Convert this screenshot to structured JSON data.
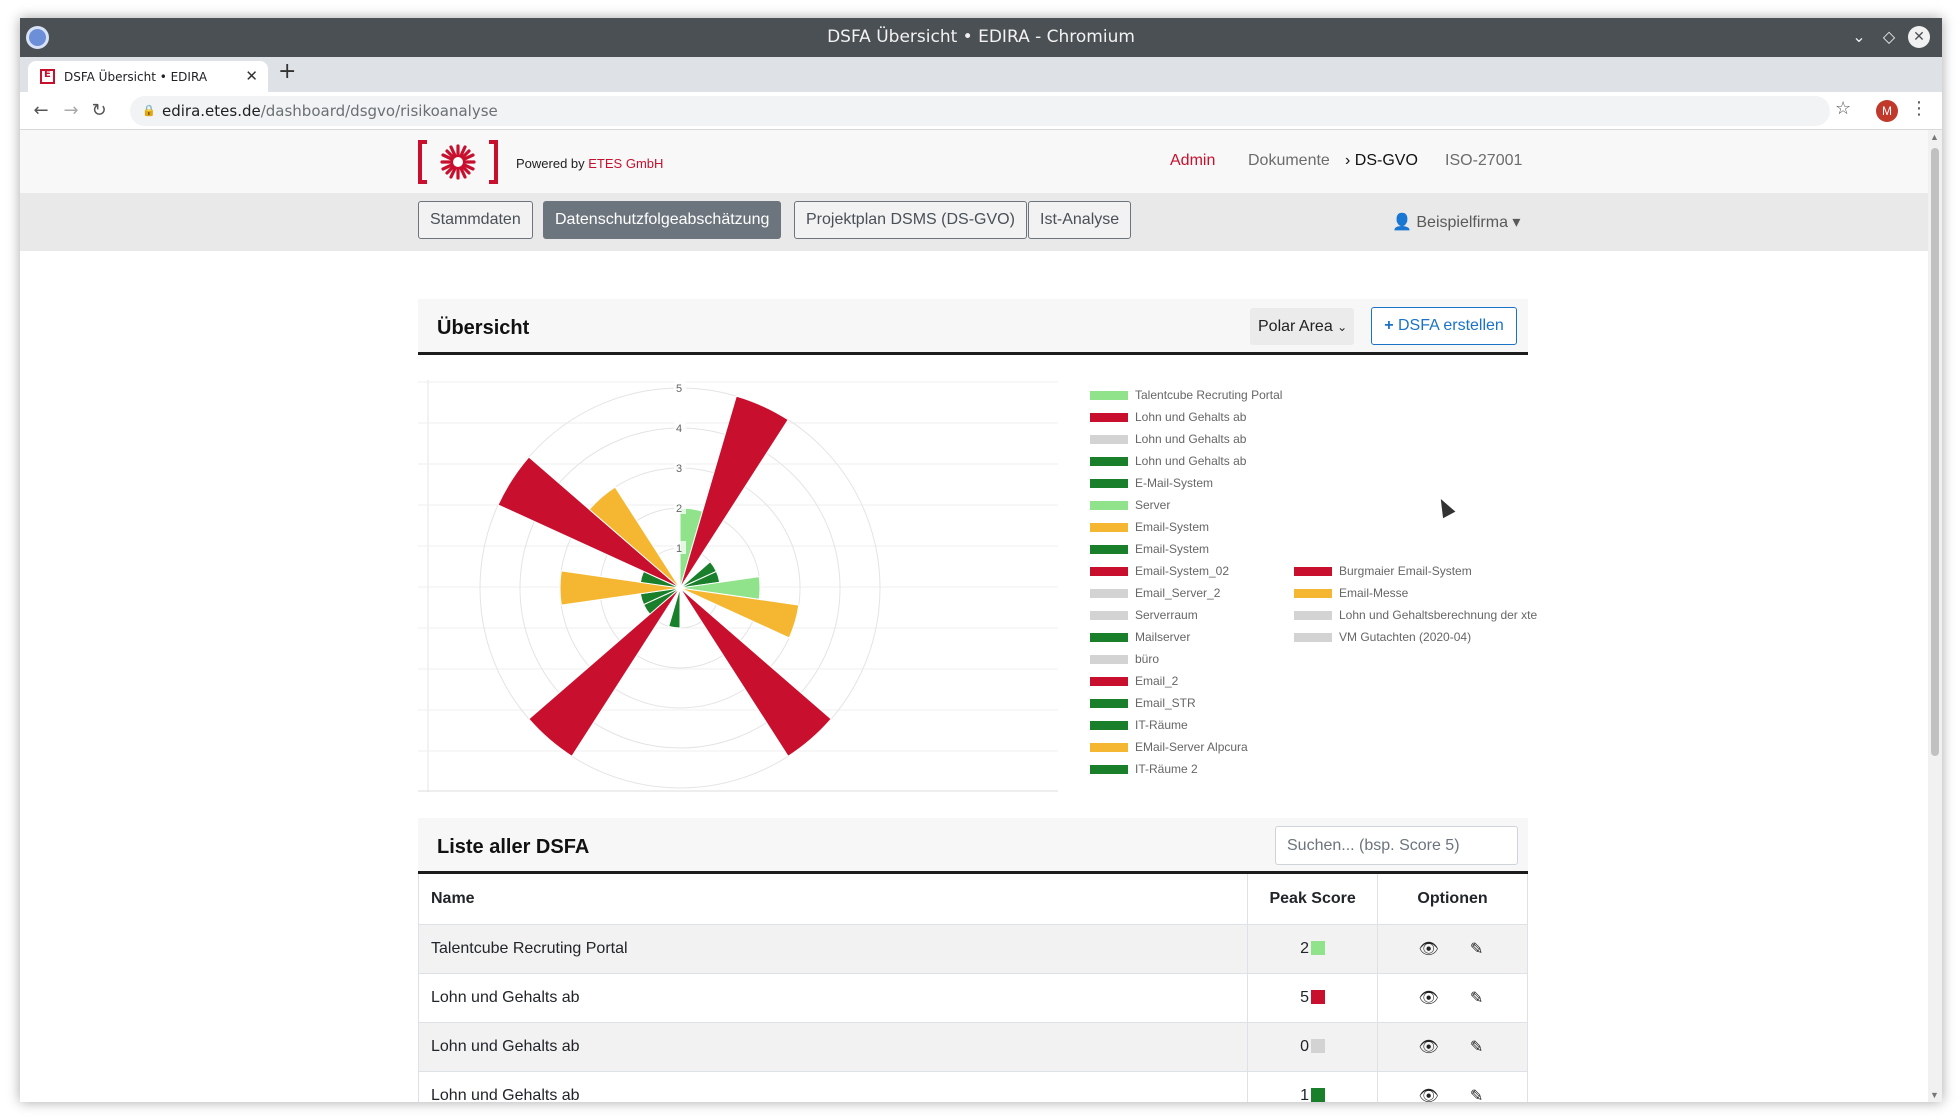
{
  "window": {
    "title": "DSFA Übersicht • EDIRA - Chromium"
  },
  "browser": {
    "tab_title": "DSFA Übersicht • EDIRA",
    "url_host": "edira.etes.de",
    "url_path": "/dashboard/dsgvo/risikoanalyse",
    "profile_initial": "M"
  },
  "header": {
    "powered_prefix": "Powered by ",
    "powered_brand": "ETES GmbH",
    "nav": [
      {
        "label": "Admin"
      },
      {
        "label": "Dokumente"
      },
      {
        "label": "DS-GVO"
      },
      {
        "label": "ISO-27001"
      }
    ]
  },
  "subnav": {
    "buttons": [
      {
        "label": "Stammdaten"
      },
      {
        "label": "Datenschutzfolgeabschätzung"
      },
      {
        "label": "Projektplan DSMS (DS-GVO)"
      },
      {
        "label": "Ist-Analyse"
      }
    ],
    "user": "Beispielfirma"
  },
  "overview": {
    "title": "Übersicht",
    "chart_type_value": "Polar Area",
    "create_label": "DSFA erstellen"
  },
  "colors": {
    "red": "#c8102e",
    "orange": "#f5b731",
    "dark_green": "#1a7f2a",
    "light_green": "#90e38a",
    "gray": "#d3d3d3"
  },
  "chart_data": {
    "type": "polar-area",
    "r_ticks": [
      "1",
      "2",
      "3",
      "4",
      "5"
    ],
    "r_max": 5,
    "legend_position": "right",
    "series": [
      {
        "name": "Talentcube Recruting Portal",
        "value": 2,
        "color": "#90e38a"
      },
      {
        "name": "Lohn und Gehalts ab",
        "value": 5,
        "color": "#c8102e"
      },
      {
        "name": "Lohn und Gehalts ab",
        "value": 0,
        "color": "#d3d3d3"
      },
      {
        "name": "Lohn und Gehalts ab",
        "value": 1,
        "color": "#1a7f2a"
      },
      {
        "name": "E-Mail-System",
        "value": 1,
        "color": "#1a7f2a"
      },
      {
        "name": "Server",
        "value": 2,
        "color": "#90e38a"
      },
      {
        "name": "Email-System",
        "value": 3,
        "color": "#f5b731"
      },
      {
        "name": "Email-System",
        "value": 0,
        "color": "#1a7f2a"
      },
      {
        "name": "Email-System_02",
        "value": 5,
        "color": "#c8102e"
      },
      {
        "name": "Email_Server_2",
        "value": 0,
        "color": "#d3d3d3"
      },
      {
        "name": "Serverraum",
        "value": 0,
        "color": "#d3d3d3"
      },
      {
        "name": "Mailserver",
        "value": 1,
        "color": "#1a7f2a"
      },
      {
        "name": "büro",
        "value": 0,
        "color": "#d3d3d3"
      },
      {
        "name": "Email_2",
        "value": 5,
        "color": "#c8102e"
      },
      {
        "name": "Email_STR",
        "value": 1,
        "color": "#1a7f2a"
      },
      {
        "name": "IT-Räume",
        "value": 1,
        "color": "#1a7f2a"
      },
      {
        "name": "EMail-Server Alpcura",
        "value": 3,
        "color": "#f5b731"
      },
      {
        "name": "IT-Räume 2",
        "value": 1,
        "color": "#1a7f2a"
      },
      {
        "name": "Burgmaier Email-System",
        "value": 5,
        "color": "#c8102e"
      },
      {
        "name": "Email-Messe",
        "value": 3,
        "color": "#f5b731"
      },
      {
        "name": "Lohn und Gehaltsberechnung der xte",
        "value": 0,
        "color": "#d3d3d3"
      },
      {
        "name": "VM Gutachten (2020-04)",
        "value": 0,
        "color": "#d3d3d3"
      }
    ]
  },
  "list": {
    "title": "Liste aller DSFA",
    "search_placeholder": "Suchen... (bsp. Score 5)",
    "columns": {
      "name": "Name",
      "score": "Peak Score",
      "options": "Optionen"
    },
    "rows": [
      {
        "name": "Talentcube Recruting Portal",
        "score": "2",
        "color": "#90e38a"
      },
      {
        "name": "Lohn und Gehalts ab",
        "score": "5",
        "color": "#c8102e"
      },
      {
        "name": "Lohn und Gehalts ab",
        "score": "0",
        "color": "#d3d3d3"
      },
      {
        "name": "Lohn und Gehalts ab",
        "score": "1",
        "color": "#1a7f2a"
      }
    ]
  }
}
